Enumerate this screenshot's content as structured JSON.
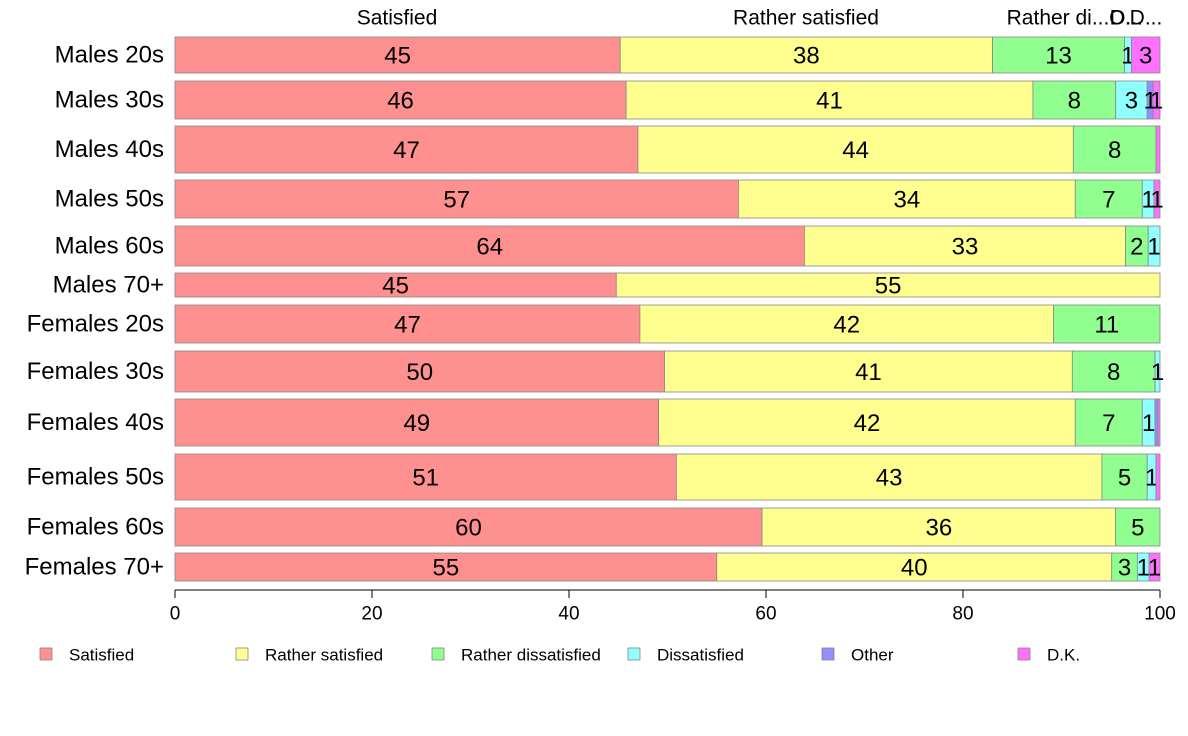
{
  "chart_data": {
    "type": "bar",
    "orientation": "horizontal",
    "stacked": true,
    "categories": [
      "Males 20s",
      "Males 30s",
      "Males 40s",
      "Males 50s",
      "Males 60s",
      "Males 70+",
      "Females 20s",
      "Females 30s",
      "Females 40s",
      "Females 50s",
      "Females 60s",
      "Females 70+"
    ],
    "series": [
      {
        "name": "Satisfied",
        "color": "#ff9090",
        "values": [
          45.2,
          45.8,
          47.0,
          57.2,
          63.9,
          44.8,
          47.2,
          49.7,
          49.1,
          50.9,
          59.6,
          55.0
        ],
        "labels": [
          "45",
          "46",
          "47",
          "57",
          "64",
          "45",
          "47",
          "50",
          "49",
          "51",
          "60",
          "55"
        ]
      },
      {
        "name": "Rather satisfied",
        "color": "#ffff90",
        "values": [
          37.8,
          41.3,
          44.2,
          34.2,
          32.6,
          55.2,
          42.0,
          41.4,
          42.3,
          43.2,
          35.9,
          40.1
        ],
        "labels": [
          "38",
          "41",
          "44",
          "34",
          "33",
          "55",
          "42",
          "41",
          "42",
          "43",
          "36",
          "40"
        ]
      },
      {
        "name": "Rather dissatisfied",
        "color": "#90ff90",
        "values": [
          13.4,
          8.4,
          8.4,
          6.8,
          2.3,
          0,
          10.8,
          8.4,
          6.8,
          4.6,
          4.5,
          2.6
        ],
        "labels": [
          "13",
          "8",
          "8",
          "7",
          "2",
          "",
          "11",
          "8",
          "7",
          "5",
          "5",
          "3"
        ]
      },
      {
        "name": "Dissatisfied",
        "color": "#90ffff",
        "values": [
          0.7,
          3.2,
          0,
          1.2,
          1.2,
          0,
          0,
          0.5,
          1.3,
          0.9,
          0,
          1.2
        ],
        "labels": [
          "1",
          "3",
          "",
          "1",
          "1",
          "",
          "",
          "1",
          "1",
          "1",
          "",
          "1"
        ]
      },
      {
        "name": "Other",
        "color": "#9090ff",
        "values": [
          0,
          0.6,
          0,
          0,
          0,
          0,
          0,
          0,
          0.3,
          0,
          0,
          0
        ],
        "labels": [
          "",
          "1",
          "",
          "",
          "",
          "",
          "",
          "",
          "",
          "",
          "",
          ""
        ]
      },
      {
        "name": "D.K.",
        "color": "#ff70ff",
        "values": [
          2.9,
          0.7,
          0.4,
          0.6,
          0,
          0,
          0,
          0,
          0.2,
          0.4,
          0,
          1.1
        ],
        "labels": [
          "3",
          "1",
          "",
          "1",
          "",
          "",
          "",
          "",
          "",
          "",
          "",
          "1"
        ]
      }
    ],
    "top_labels": [
      "Satisfied",
      "Rather satisfied",
      "Rather di...",
      "D...",
      "O...",
      "D..."
    ],
    "xlim": [
      0,
      100
    ],
    "xticks": [
      "0",
      "20",
      "40",
      "60",
      "80",
      "100"
    ],
    "grid": false,
    "legend_position": "bottom"
  }
}
